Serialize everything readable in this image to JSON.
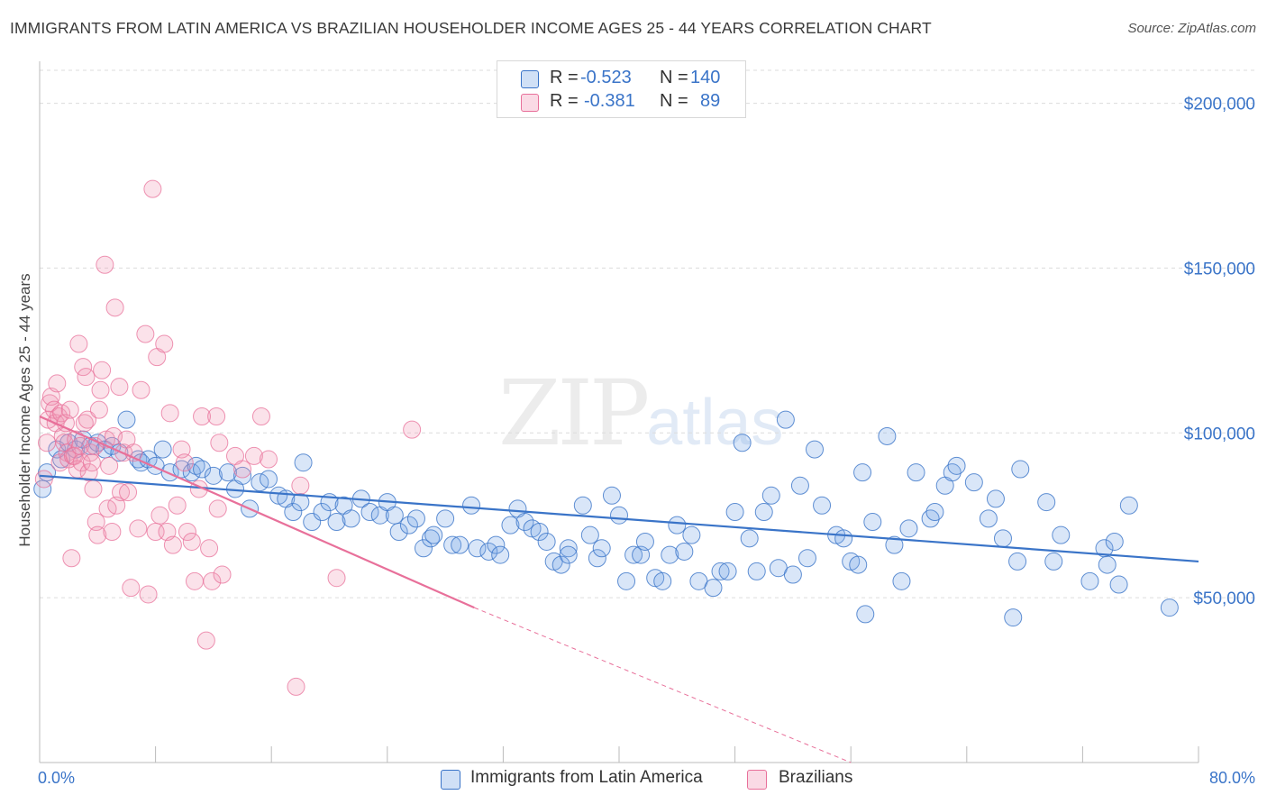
{
  "title": "IMMIGRANTS FROM LATIN AMERICA VS BRAZILIAN HOUSEHOLDER INCOME AGES 25 - 44 YEARS CORRELATION CHART",
  "source": "Source: ZipAtlas.com",
  "watermark": {
    "zip": "ZIP",
    "atlas": "atlas"
  },
  "colors": {
    "blue": "#3a74c8",
    "blue_fill": "rgba(120,165,230,0.28)",
    "pink": "#e8709a",
    "pink_fill": "rgba(240,150,180,0.28)"
  },
  "legend": {
    "rows": [
      {
        "r_label": "R =",
        "r_value": "-0.523",
        "n_label": "N =",
        "n_value": "140"
      },
      {
        "r_label": "R =",
        "r_value": "-0.381",
        "n_label": "N =",
        "n_value": "89"
      }
    ]
  },
  "bottom_legend": {
    "series1": "Immigrants from Latin America",
    "series2": "Brazilians"
  },
  "chart_data": {
    "type": "scatter",
    "xlabel": "",
    "ylabel": "Householder Income Ages 25 - 44 years",
    "xlim": [
      0,
      80
    ],
    "ylim": [
      0,
      210000
    ],
    "x_tick_labels": [
      "0.0%",
      "80.0%"
    ],
    "y_ticks": [
      50000,
      100000,
      150000,
      200000
    ],
    "y_tick_labels": [
      "$50,000",
      "$100,000",
      "$150,000",
      "$200,000"
    ],
    "grid": true,
    "series": [
      {
        "name": "Immigrants from Latin America",
        "color": "#3a74c8",
        "R": -0.523,
        "N": 140,
        "trend": {
          "x": [
            0,
            80
          ],
          "y": [
            87000,
            61000
          ]
        },
        "points": [
          [
            0.2,
            83000
          ],
          [
            0.5,
            88000
          ],
          [
            1.2,
            95000
          ],
          [
            1.5,
            92000
          ],
          [
            2,
            97000
          ],
          [
            2.5,
            95000
          ],
          [
            3,
            98000
          ],
          [
            3.5,
            96000
          ],
          [
            4,
            97000
          ],
          [
            4.5,
            95000
          ],
          [
            5,
            96000
          ],
          [
            5.5,
            94000
          ],
          [
            6,
            104000
          ],
          [
            6.8,
            92000
          ],
          [
            7,
            91000
          ],
          [
            7.5,
            92000
          ],
          [
            8,
            90000
          ],
          [
            8.5,
            95000
          ],
          [
            9,
            88000
          ],
          [
            9.8,
            89000
          ],
          [
            10.5,
            88000
          ],
          [
            10.8,
            90000
          ],
          [
            11.2,
            89000
          ],
          [
            12,
            87000
          ],
          [
            13,
            88000
          ],
          [
            13.5,
            83000
          ],
          [
            14,
            87000
          ],
          [
            14.5,
            77000
          ],
          [
            15.2,
            85000
          ],
          [
            15.8,
            86000
          ],
          [
            16.5,
            81000
          ],
          [
            17,
            80000
          ],
          [
            17.5,
            76000
          ],
          [
            18,
            79000
          ],
          [
            18.2,
            91000
          ],
          [
            18.8,
            73000
          ],
          [
            19.5,
            76000
          ],
          [
            20,
            79000
          ],
          [
            20.5,
            73000
          ],
          [
            21,
            78000
          ],
          [
            21.5,
            74000
          ],
          [
            22.2,
            80000
          ],
          [
            22.8,
            76000
          ],
          [
            23.5,
            75000
          ],
          [
            24,
            79000
          ],
          [
            24.5,
            75000
          ],
          [
            24.8,
            70000
          ],
          [
            25.5,
            72000
          ],
          [
            26,
            74000
          ],
          [
            26.5,
            65000
          ],
          [
            27,
            68000
          ],
          [
            27.2,
            69000
          ],
          [
            28,
            74000
          ],
          [
            28.5,
            66000
          ],
          [
            29,
            66000
          ],
          [
            29.8,
            78000
          ],
          [
            30.2,
            65000
          ],
          [
            31,
            64000
          ],
          [
            31.5,
            66000
          ],
          [
            31.8,
            63000
          ],
          [
            32.5,
            72000
          ],
          [
            33,
            77000
          ],
          [
            33.5,
            73000
          ],
          [
            34,
            71000
          ],
          [
            34.5,
            70000
          ],
          [
            35,
            67000
          ],
          [
            35.5,
            61000
          ],
          [
            36,
            60000
          ],
          [
            36.5,
            65000
          ],
          [
            36.5,
            63000
          ],
          [
            37.5,
            78000
          ],
          [
            38,
            69000
          ],
          [
            38.5,
            62000
          ],
          [
            38.8,
            65000
          ],
          [
            39.5,
            81000
          ],
          [
            40,
            75000
          ],
          [
            40.5,
            55000
          ],
          [
            41,
            63000
          ],
          [
            41.5,
            63000
          ],
          [
            41.8,
            67000
          ],
          [
            42.5,
            56000
          ],
          [
            43,
            55000
          ],
          [
            43.5,
            63000
          ],
          [
            44,
            72000
          ],
          [
            44.5,
            64000
          ],
          [
            45,
            69000
          ],
          [
            45.5,
            55000
          ],
          [
            46.5,
            53000
          ],
          [
            47,
            58000
          ],
          [
            47.5,
            58000
          ],
          [
            48,
            76000
          ],
          [
            48.5,
            97000
          ],
          [
            49,
            68000
          ],
          [
            49.5,
            58000
          ],
          [
            50,
            76000
          ],
          [
            50.5,
            81000
          ],
          [
            51,
            59000
          ],
          [
            51.5,
            104000
          ],
          [
            52,
            57000
          ],
          [
            52.5,
            84000
          ],
          [
            53,
            62000
          ],
          [
            53.5,
            95000
          ],
          [
            54,
            78000
          ],
          [
            55,
            69000
          ],
          [
            55.5,
            68000
          ],
          [
            56,
            61000
          ],
          [
            56.5,
            60000
          ],
          [
            56.8,
            88000
          ],
          [
            57,
            45000
          ],
          [
            57.5,
            73000
          ],
          [
            58.5,
            99000
          ],
          [
            59,
            66000
          ],
          [
            59.5,
            55000
          ],
          [
            60,
            71000
          ],
          [
            60.5,
            88000
          ],
          [
            61.5,
            74000
          ],
          [
            61.8,
            76000
          ],
          [
            62.5,
            84000
          ],
          [
            63,
            88000
          ],
          [
            63.3,
            90000
          ],
          [
            64.5,
            85000
          ],
          [
            65.5,
            74000
          ],
          [
            66,
            80000
          ],
          [
            66.5,
            68000
          ],
          [
            67.2,
            44000
          ],
          [
            67.5,
            61000
          ],
          [
            67.7,
            89000
          ],
          [
            69.5,
            79000
          ],
          [
            70,
            61000
          ],
          [
            70.5,
            69000
          ],
          [
            72.5,
            55000
          ],
          [
            73.5,
            65000
          ],
          [
            73.7,
            60000
          ],
          [
            74.2,
            67000
          ],
          [
            74.5,
            54000
          ],
          [
            75.2,
            78000
          ],
          [
            78,
            47000
          ]
        ]
      },
      {
        "name": "Brazilians",
        "color": "#e8709a",
        "R": -0.381,
        "N": 89,
        "trend": {
          "x": [
            0,
            30
          ],
          "y": [
            105000,
            47000
          ]
        },
        "trend_extension": {
          "x": [
            30,
            56
          ],
          "y": [
            47000,
            0
          ]
        },
        "points": [
          [
            0.3,
            86000
          ],
          [
            0.5,
            97000
          ],
          [
            0.6,
            104000
          ],
          [
            0.7,
            109000
          ],
          [
            0.8,
            111000
          ],
          [
            1,
            107000
          ],
          [
            1.1,
            103000
          ],
          [
            1.2,
            115000
          ],
          [
            1.3,
            105000
          ],
          [
            1.4,
            91000
          ],
          [
            1.5,
            106000
          ],
          [
            1.6,
            99000
          ],
          [
            1.7,
            97000
          ],
          [
            1.8,
            103000
          ],
          [
            1.9,
            94000
          ],
          [
            2,
            92000
          ],
          [
            2.1,
            107000
          ],
          [
            2.2,
            62000
          ],
          [
            2.3,
            93000
          ],
          [
            2.4,
            93000
          ],
          [
            2.5,
            98000
          ],
          [
            2.6,
            89000
          ],
          [
            2.7,
            127000
          ],
          [
            2.8,
            96000
          ],
          [
            2.9,
            91000
          ],
          [
            3,
            120000
          ],
          [
            3.1,
            103000
          ],
          [
            3.2,
            117000
          ],
          [
            3.3,
            104000
          ],
          [
            3.4,
            88000
          ],
          [
            3.5,
            94000
          ],
          [
            3.6,
            91000
          ],
          [
            3.7,
            83000
          ],
          [
            3.8,
            96000
          ],
          [
            3.9,
            73000
          ],
          [
            4,
            69000
          ],
          [
            4.1,
            107000
          ],
          [
            4.2,
            113000
          ],
          [
            4.3,
            119000
          ],
          [
            4.5,
            151000
          ],
          [
            4.6,
            98000
          ],
          [
            4.7,
            77000
          ],
          [
            4.8,
            90000
          ],
          [
            5,
            70000
          ],
          [
            5.1,
            99000
          ],
          [
            5.2,
            138000
          ],
          [
            5.3,
            78000
          ],
          [
            5.5,
            114000
          ],
          [
            5.6,
            82000
          ],
          [
            5.8,
            94000
          ],
          [
            6,
            98000
          ],
          [
            6.1,
            82000
          ],
          [
            6.3,
            53000
          ],
          [
            6.5,
            94000
          ],
          [
            6.8,
            71000
          ],
          [
            7,
            113000
          ],
          [
            7.3,
            130000
          ],
          [
            7.5,
            51000
          ],
          [
            7.8,
            174000
          ],
          [
            8,
            70000
          ],
          [
            8.1,
            123000
          ],
          [
            8.3,
            75000
          ],
          [
            8.6,
            127000
          ],
          [
            8.8,
            70000
          ],
          [
            9,
            106000
          ],
          [
            9.2,
            66000
          ],
          [
            9.5,
            78000
          ],
          [
            9.8,
            95000
          ],
          [
            10,
            91000
          ],
          [
            10.2,
            70000
          ],
          [
            10.5,
            67000
          ],
          [
            10.7,
            55000
          ],
          [
            11,
            83000
          ],
          [
            11.2,
            105000
          ],
          [
            11.5,
            37000
          ],
          [
            11.7,
            65000
          ],
          [
            11.9,
            55000
          ],
          [
            12.2,
            105000
          ],
          [
            12.3,
            77000
          ],
          [
            12.4,
            97000
          ],
          [
            12.6,
            57000
          ],
          [
            13.5,
            93000
          ],
          [
            14,
            89000
          ],
          [
            14.8,
            93000
          ],
          [
            15.3,
            105000
          ],
          [
            15.8,
            92000
          ],
          [
            17.7,
            23000
          ],
          [
            18,
            84000
          ],
          [
            20.5,
            56000
          ],
          [
            25.7,
            101000
          ]
        ]
      }
    ]
  }
}
